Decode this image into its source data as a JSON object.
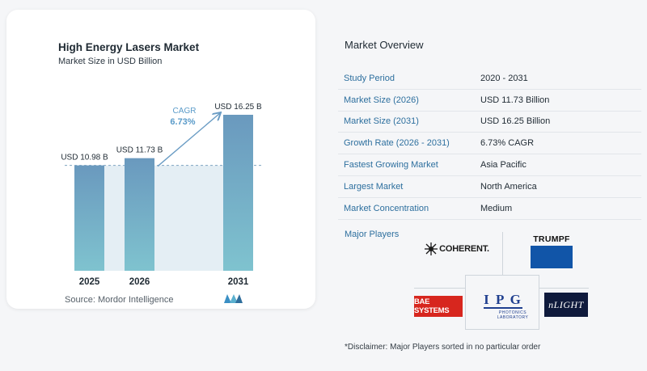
{
  "chart_data": {
    "type": "bar",
    "title": "High Energy Lasers Market",
    "subtitle": "Market Size in USD Billion",
    "categories": [
      "2025",
      "2026",
      "2031"
    ],
    "values": [
      10.98,
      11.73,
      16.25
    ],
    "value_labels": [
      "USD 10.98 B",
      "USD 11.73 B",
      "USD 16.25 B"
    ],
    "cagr_label": "CAGR",
    "cagr_value": "6.73%",
    "ylim": [
      0,
      16.25
    ],
    "grid": false,
    "colors": {
      "bar_top": "#6a99be",
      "bar_bottom": "#7fc3cf",
      "shade": "#e4eef4",
      "dashed": "#7fa4c0",
      "arrow": "#6a9cc4",
      "cagr": "#5a9bc9"
    }
  },
  "source": "Source:  Mordor Intelligence",
  "overview": {
    "title": "Market Overview",
    "rows": [
      {
        "label": "Study Period",
        "value": "2020 - 2031"
      },
      {
        "label": "Market Size (2026)",
        "value": "USD 11.73 Billion"
      },
      {
        "label": "Market Size (2031)",
        "value": "USD 16.25 Billion"
      },
      {
        "label": "Growth Rate (2026 - 2031)",
        "value": "6.73% CAGR"
      },
      {
        "label": "Fastest Growing Market",
        "value": "Asia Pacific"
      },
      {
        "label": "Largest Market",
        "value": "North America"
      },
      {
        "label": "Market Concentration",
        "value": "Medium"
      }
    ]
  },
  "players": {
    "label": "Major Players",
    "logos": {
      "coherent": "COHERENT.",
      "trumpf": "TRUMPF",
      "bae": "BAE SYSTEMS",
      "ipg": "I P G",
      "ipg_sub1": "PHOTONICS",
      "ipg_sub2": "LABORATORY",
      "nlight": "nLIGHT"
    }
  },
  "disclaimer": "*Disclaimer: Major Players sorted in no particular order"
}
